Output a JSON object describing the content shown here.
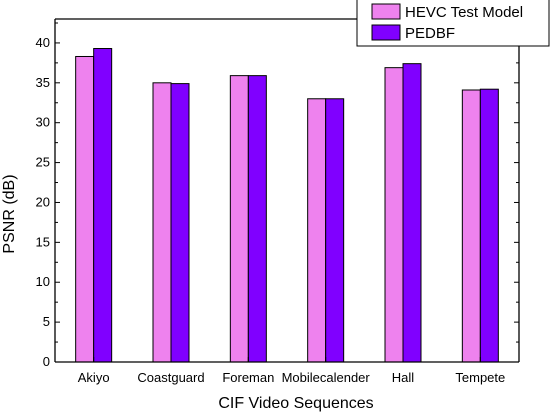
{
  "chart_data": {
    "type": "bar",
    "title": "",
    "xlabel": "CIF Video Sequences",
    "ylabel": "PSNR (dB)",
    "categories": [
      "Akiyo",
      "Coastguard",
      "Foreman",
      "Mobilecalender",
      "Hall",
      "Tempete"
    ],
    "series": [
      {
        "name": "HEVC Test Model",
        "values": [
          38.3,
          35.0,
          35.9,
          33.0,
          36.9,
          34.1
        ],
        "color": "#ee82ee"
      },
      {
        "name": "PEDBF",
        "values": [
          39.3,
          34.9,
          35.9,
          33.0,
          37.4,
          34.2
        ],
        "color": "#8000ff"
      }
    ],
    "ylim": [
      0,
      43
    ],
    "yticks": [
      0,
      5,
      10,
      15,
      20,
      25,
      30,
      35,
      40
    ],
    "legend_position": "top-right",
    "grid": false
  }
}
